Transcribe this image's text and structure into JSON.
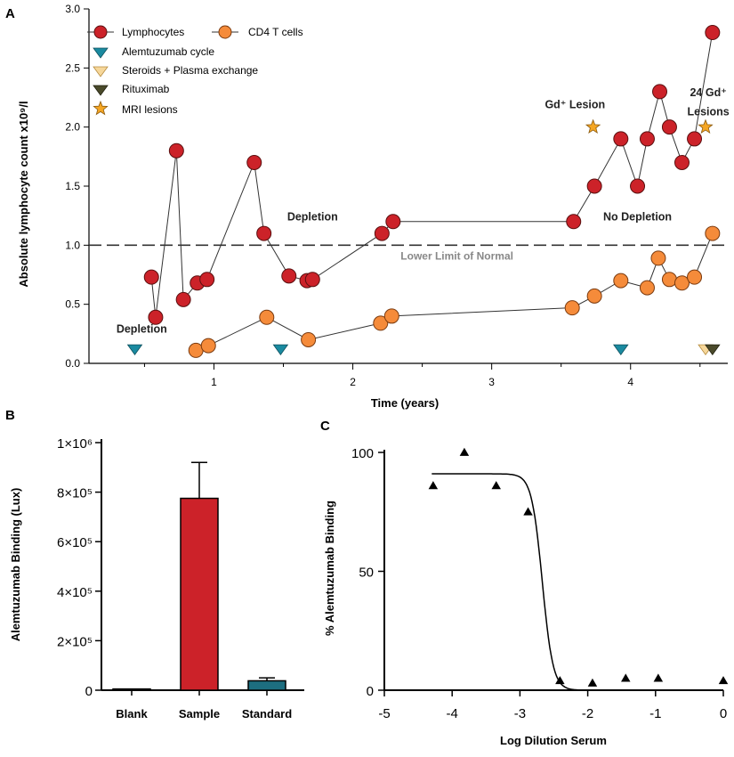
{
  "chart_data": [
    {
      "panel": "A",
      "type": "line",
      "xlabel": "Time (years)",
      "ylabel": "Absolute lymphocyte count x10⁹/l",
      "xlim": [
        0.1,
        4.7
      ],
      "ylim": [
        0,
        3.0
      ],
      "x_ticks": [
        1,
        2,
        3,
        4
      ],
      "y_ticks": [
        "0.0",
        "0.5",
        "1.0",
        "1.5",
        "2.0",
        "2.5",
        "3.0"
      ],
      "grid": false,
      "legend_position": "top-left",
      "colors": {
        "lymphocytes": "#cc2229",
        "cd4": "#f58b3a",
        "alemtuzumab": "#1a8aa0",
        "steroids": "#f6d79a",
        "rituximab": "#4a4a2a",
        "mri": "#f5a623"
      },
      "series": [
        {
          "name": "Lymphocytes",
          "marker": "circle",
          "x": [
            0.55,
            0.58,
            0.73,
            0.78,
            0.88,
            0.95,
            1.29,
            1.36,
            1.54,
            1.67,
            1.71,
            2.21,
            2.29,
            3.59,
            3.74,
            3.93,
            4.05,
            4.12,
            4.21,
            4.28,
            4.37,
            4.46,
            4.59
          ],
          "y": [
            0.73,
            0.39,
            1.8,
            0.54,
            0.68,
            0.71,
            1.7,
            1.1,
            0.74,
            0.7,
            0.71,
            1.1,
            1.2,
            1.2,
            1.5,
            1.9,
            1.5,
            1.9,
            2.3,
            2.0,
            1.7,
            1.9,
            2.8
          ]
        },
        {
          "name": "CD4 T cells",
          "marker": "circle",
          "x": [
            0.87,
            0.96,
            1.38,
            1.68,
            2.2,
            2.28,
            3.58,
            3.74,
            3.93,
            4.12,
            4.2,
            4.28,
            4.37,
            4.46,
            4.59
          ],
          "y": [
            0.11,
            0.15,
            0.39,
            0.2,
            0.34,
            0.4,
            0.47,
            0.57,
            0.7,
            0.64,
            0.89,
            0.71,
            0.68,
            0.73,
            1.1
          ]
        }
      ],
      "treatment_markers": [
        {
          "name": "Alemtuzumab cycle",
          "marker": "triangle-down",
          "x": [
            0.43,
            1.48,
            3.93
          ]
        },
        {
          "name": "Steroids + Plasma exchange",
          "marker": "triangle-down",
          "x": [
            4.54
          ]
        },
        {
          "name": "Rituximab",
          "marker": "triangle-down",
          "x": [
            4.59
          ]
        }
      ],
      "mri_lesions": {
        "name": "MRI lesions",
        "marker": "star",
        "x": [
          3.73,
          4.54
        ],
        "y": [
          2.0,
          2.0
        ]
      },
      "reference_line": {
        "y": 1.0,
        "label": "Lower Limit of Normal",
        "style": "dashed"
      },
      "annotations": [
        {
          "text": "Depletion",
          "x": 0.48,
          "y": 0.26
        },
        {
          "text": "Depletion",
          "x": 1.71,
          "y": 1.21
        },
        {
          "text": "No Depletion",
          "x": 4.05,
          "y": 1.21
        },
        {
          "text": "Gd⁺ Lesion",
          "x": 3.6,
          "y": 2.16
        },
        {
          "text": "24 Gd⁺",
          "x": 4.56,
          "y": 2.26
        },
        {
          "text": "Lesions",
          "x": 4.56,
          "y": 2.1
        }
      ]
    },
    {
      "panel": "B",
      "type": "bar",
      "ylabel": "Alemtuzumab Binding (Lux)",
      "categories": [
        "Blank",
        "Sample",
        "Standard"
      ],
      "values": [
        5000,
        775000,
        38000
      ],
      "errors": [
        0,
        145000,
        12000
      ],
      "colors": [
        "#ffffff",
        "#cc2229",
        "#1d6e80"
      ],
      "ylim": [
        0,
        1000000
      ],
      "y_ticks": [
        {
          "value": 0,
          "label": "0"
        },
        {
          "value": 200000,
          "label": "2×10⁵"
        },
        {
          "value": 400000,
          "label": "4×10⁵"
        },
        {
          "value": 600000,
          "label": "6×10⁵"
        },
        {
          "value": 800000,
          "label": "8×10⁵"
        },
        {
          "value": 1000000,
          "label": "1×10⁶"
        }
      ]
    },
    {
      "panel": "C",
      "type": "scatter",
      "xlabel": "Log Dilution Serum",
      "ylabel": "% Alemtuzumab Binding",
      "xlim": [
        -5,
        0
      ],
      "ylim": [
        0,
        100
      ],
      "x_ticks": [
        "-5",
        "-4",
        "-3",
        "-2",
        "-1",
        "0"
      ],
      "y_ticks": [
        "0",
        "50",
        "100"
      ],
      "points": {
        "marker": "triangle-up",
        "x": [
          -4.28,
          -3.82,
          -3.35,
          -2.88,
          -2.41,
          -1.93,
          -1.44,
          -0.96,
          0.0
        ],
        "y": [
          86,
          100,
          86,
          75,
          4,
          3,
          5,
          5,
          4
        ]
      },
      "fit": {
        "type": "sigmoid",
        "top": 91,
        "bottom": 0,
        "log_ec50": -2.67,
        "hill_slope": -5.5
      }
    }
  ]
}
